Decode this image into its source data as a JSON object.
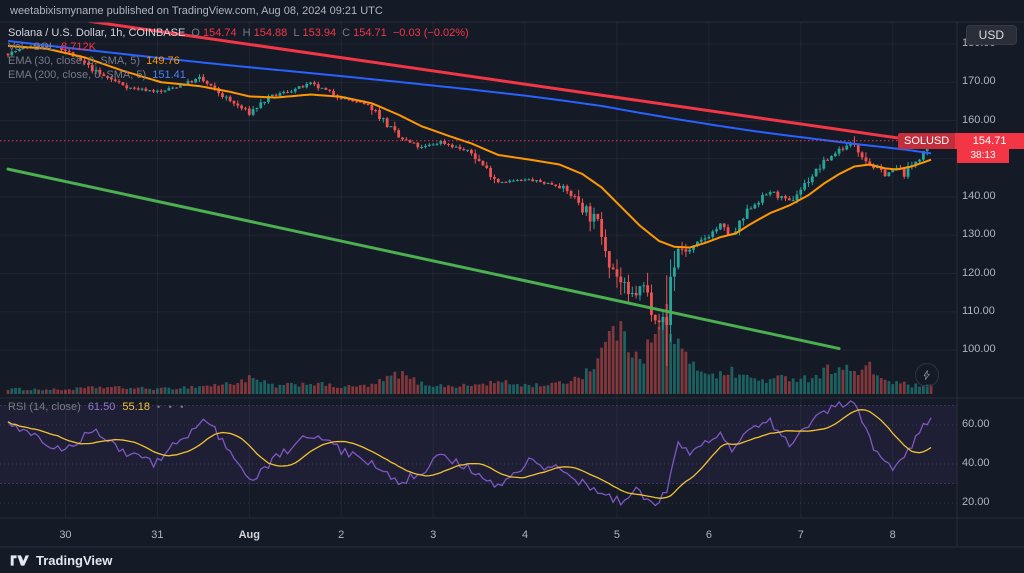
{
  "colors": {
    "bg": "#151a27",
    "up": "#26a69a",
    "down": "#ef5350",
    "up_vol": "rgba(38,166,154,0.5)",
    "down_vol": "rgba(239,83,80,0.5)",
    "ema30": "#ff9800",
    "ema200": "#2962ff",
    "trend_red": "#f23645",
    "trend_green": "#4caf50",
    "rsi": "#7e57c2",
    "rsi_ma": "#f1c232",
    "rsi_band": "rgba(126,87,194,0.09)",
    "grid": "rgba(250,250,250,0.05)",
    "grid_dotted": "rgba(250,250,250,0.13)",
    "border": "#2a2e39",
    "last_price": "#f23645"
  },
  "top_bar": {
    "text": "weetabixismyname published on TradingView.com, Aug 08, 2024 09:21 UTC"
  },
  "toolbar": {
    "currency": "USD"
  },
  "legend": {
    "symbol_title": "Solana / U.S. Dollar, 1h, COINBASE",
    "ohlc": {
      "o_label": "O",
      "o": "154.74",
      "h_label": "H",
      "h": "154.88",
      "l_label": "L",
      "l": "153.94",
      "c_label": "C",
      "c": "154.71",
      "change": "−0.03 (−0.02%)"
    },
    "volume_label": "Vol · SOL",
    "volume_value": "8.712K",
    "ema30_label": "EMA (30, close, 0, SMA, 5)",
    "ema30_value": "149.76",
    "ema200_label": "EMA (200, close, 0, SMA, 5)",
    "ema200_value": "151.41",
    "rsi_label": "RSI (14, close)",
    "rsi_value": "61.50",
    "rsi_ma_value": "55.18",
    "rsi_toolbar": "• • •"
  },
  "price_label": {
    "symbol": "SOLUSD",
    "price": "154.71",
    "countdown": "38:13"
  },
  "footer": {
    "brand": "TradingView"
  },
  "chart_data": {
    "type": "candlestick",
    "title": "Solana / U.S. Dollar, 1h, COINBASE",
    "symbol": "SOLUSD",
    "interval": "1h",
    "exchange": "COINBASE",
    "candles": 242,
    "last": {
      "o": 154.74,
      "h": 154.88,
      "l": 153.94,
      "c": 154.71,
      "change": "-0.03",
      "change_pct": "-0.02%"
    },
    "volume_last": "8.712K",
    "price_axis_ticks": [
      180,
      170,
      160,
      150,
      140,
      130,
      120,
      110,
      100
    ],
    "rsi_axis_ticks": [
      60,
      40,
      20
    ],
    "ylim_price": [
      89,
      184
    ],
    "ylim_rsi": [
      13,
      72
    ],
    "day_labels": [
      {
        "label": "30",
        "major": false
      },
      {
        "label": "31",
        "major": false
      },
      {
        "label": "Aug",
        "major": true
      },
      {
        "label": "2",
        "major": false
      },
      {
        "label": "3",
        "major": false
      },
      {
        "label": "4",
        "major": false
      },
      {
        "label": "5",
        "major": false
      },
      {
        "label": "6",
        "major": false
      },
      {
        "label": "7",
        "major": false
      },
      {
        "label": "8",
        "major": false
      }
    ],
    "price_waypoints": [
      [
        0,
        177.5
      ],
      [
        6,
        179.5
      ],
      [
        14,
        179.0
      ],
      [
        24,
        172.0
      ],
      [
        32,
        168.5
      ],
      [
        40,
        167.5
      ],
      [
        50,
        171.0
      ],
      [
        58,
        165.0
      ],
      [
        63,
        162.0
      ],
      [
        68,
        166.0
      ],
      [
        79,
        169.5
      ],
      [
        87,
        166.0
      ],
      [
        95,
        163.5
      ],
      [
        102,
        155.5
      ],
      [
        108,
        152.8
      ],
      [
        113,
        154.5
      ],
      [
        121,
        151.5
      ],
      [
        128,
        144.0
      ],
      [
        136,
        144.5
      ],
      [
        144,
        143.0
      ],
      [
        149,
        139.0
      ],
      [
        155,
        131.5
      ],
      [
        158,
        121.5
      ],
      [
        162,
        113.5
      ],
      [
        166,
        116.5
      ],
      [
        169,
        109.5
      ],
      [
        172,
        106.5
      ],
      [
        173,
        119.0
      ],
      [
        175,
        126.5
      ],
      [
        178,
        126.0
      ],
      [
        181,
        128.5
      ],
      [
        186,
        132.5
      ],
      [
        189,
        129.5
      ],
      [
        194,
        137.5
      ],
      [
        199,
        141.5
      ],
      [
        204,
        138.5
      ],
      [
        209,
        144.5
      ],
      [
        213,
        149.0
      ],
      [
        217,
        152.5
      ],
      [
        221,
        154.0
      ],
      [
        225,
        148.5
      ],
      [
        229,
        146.0
      ],
      [
        232,
        147.5
      ],
      [
        234,
        146.2
      ],
      [
        238,
        150.5
      ],
      [
        241,
        154.71
      ]
    ],
    "ema30_waypoints": [
      [
        0,
        179.5
      ],
      [
        10,
        178.8
      ],
      [
        20,
        176.5
      ],
      [
        30,
        173.0
      ],
      [
        40,
        170.0
      ],
      [
        50,
        169.0
      ],
      [
        58,
        167.5
      ],
      [
        63,
        166.3
      ],
      [
        70,
        166.0
      ],
      [
        79,
        166.8
      ],
      [
        87,
        166.2
      ],
      [
        95,
        164.5
      ],
      [
        102,
        161.5
      ],
      [
        108,
        158.5
      ],
      [
        115,
        156.0
      ],
      [
        121,
        154.0
      ],
      [
        128,
        151.0
      ],
      [
        136,
        149.8
      ],
      [
        144,
        148.5
      ],
      [
        150,
        146.0
      ],
      [
        155,
        142.5
      ],
      [
        160,
        137.5
      ],
      [
        165,
        132.5
      ],
      [
        170,
        128.5
      ],
      [
        174,
        127.0
      ],
      [
        178,
        126.8
      ],
      [
        182,
        128.0
      ],
      [
        186,
        129.5
      ],
      [
        190,
        130.5
      ],
      [
        194,
        133.0
      ],
      [
        199,
        135.8
      ],
      [
        204,
        137.8
      ],
      [
        209,
        140.5
      ],
      [
        213,
        143.5
      ],
      [
        217,
        146.0
      ],
      [
        221,
        148.0
      ],
      [
        225,
        148.5
      ],
      [
        229,
        147.5
      ],
      [
        232,
        147.2
      ],
      [
        236,
        148.0
      ],
      [
        241,
        149.76
      ]
    ],
    "ema200_waypoints": [
      [
        0,
        180.8
      ],
      [
        20,
        178.5
      ],
      [
        40,
        176.3
      ],
      [
        60,
        174.2
      ],
      [
        80,
        172.3
      ],
      [
        100,
        170.3
      ],
      [
        120,
        168.2
      ],
      [
        135,
        166.5
      ],
      [
        145,
        165.2
      ],
      [
        155,
        163.8
      ],
      [
        165,
        162.0
      ],
      [
        175,
        160.3
      ],
      [
        185,
        158.7
      ],
      [
        195,
        157.2
      ],
      [
        205,
        155.9
      ],
      [
        213,
        154.9
      ],
      [
        221,
        153.9
      ],
      [
        229,
        153.0
      ],
      [
        235,
        152.3
      ],
      [
        241,
        151.41
      ]
    ],
    "rsi_waypoints": [
      [
        0,
        62
      ],
      [
        6,
        56
      ],
      [
        14,
        46
      ],
      [
        22,
        57
      ],
      [
        30,
        47
      ],
      [
        38,
        40
      ],
      [
        46,
        54
      ],
      [
        52,
        63
      ],
      [
        58,
        46
      ],
      [
        63,
        31
      ],
      [
        70,
        43
      ],
      [
        79,
        55
      ],
      [
        87,
        47
      ],
      [
        95,
        41
      ],
      [
        102,
        30
      ],
      [
        108,
        36
      ],
      [
        113,
        45
      ],
      [
        121,
        37
      ],
      [
        128,
        29
      ],
      [
        136,
        41
      ],
      [
        144,
        37
      ],
      [
        149,
        31
      ],
      [
        155,
        25
      ],
      [
        160,
        21
      ],
      [
        164,
        26
      ],
      [
        169,
        19
      ],
      [
        172,
        27
      ],
      [
        175,
        52
      ],
      [
        178,
        45
      ],
      [
        181,
        49
      ],
      [
        186,
        55
      ],
      [
        189,
        46
      ],
      [
        194,
        58
      ],
      [
        199,
        62
      ],
      [
        204,
        50
      ],
      [
        209,
        60
      ],
      [
        213,
        66
      ],
      [
        217,
        70
      ],
      [
        221,
        72
      ],
      [
        225,
        52
      ],
      [
        229,
        41
      ],
      [
        232,
        38
      ],
      [
        235,
        46
      ],
      [
        238,
        58
      ],
      [
        241,
        61.5
      ]
    ],
    "volume_waypoints": [
      [
        0,
        6
      ],
      [
        14,
        5
      ],
      [
        24,
        8
      ],
      [
        40,
        6
      ],
      [
        50,
        9
      ],
      [
        58,
        12
      ],
      [
        63,
        18
      ],
      [
        70,
        9
      ],
      [
        79,
        13
      ],
      [
        87,
        8
      ],
      [
        95,
        10
      ],
      [
        102,
        24
      ],
      [
        108,
        12
      ],
      [
        115,
        9
      ],
      [
        121,
        10
      ],
      [
        128,
        14
      ],
      [
        136,
        10
      ],
      [
        144,
        12
      ],
      [
        149,
        20
      ],
      [
        153,
        34
      ],
      [
        157,
        65
      ],
      [
        158,
        88
      ],
      [
        160,
        68
      ],
      [
        163,
        55
      ],
      [
        166,
        48
      ],
      [
        169,
        66
      ],
      [
        172,
        92
      ],
      [
        174,
        70
      ],
      [
        176,
        48
      ],
      [
        178,
        34
      ],
      [
        182,
        28
      ],
      [
        186,
        22
      ],
      [
        189,
        26
      ],
      [
        194,
        18
      ],
      [
        199,
        16
      ],
      [
        204,
        20
      ],
      [
        209,
        18
      ],
      [
        213,
        26
      ],
      [
        217,
        34
      ],
      [
        221,
        24
      ],
      [
        225,
        30
      ],
      [
        229,
        16
      ],
      [
        232,
        13
      ],
      [
        236,
        10
      ],
      [
        241,
        8.7
      ]
    ],
    "extremes": {
      "low_i": 172,
      "low": 104.0,
      "high_i": 221,
      "high": 155.9
    },
    "trendlines": [
      {
        "name": "descending-resistance",
        "color": "#f23645",
        "from": [
          0,
          189.0
        ],
        "to": [
          234,
          155.2
        ],
        "width": 3
      },
      {
        "name": "descending-support",
        "color": "#4caf50",
        "from": [
          0,
          147.3
        ],
        "to": [
          217,
          100.4
        ],
        "width": 3
      }
    ],
    "indicators": {
      "ema30": {
        "color": "#ff9800",
        "value": 149.76
      },
      "ema200": {
        "color": "#2962ff",
        "value": 151.41
      },
      "rsi": {
        "color": "#7e57c2",
        "value": 61.5,
        "ma_color": "#f1c232",
        "ma_value": 55.18,
        "band": [
          70,
          30
        ]
      },
      "volume": {
        "last": "8.712K"
      }
    }
  }
}
